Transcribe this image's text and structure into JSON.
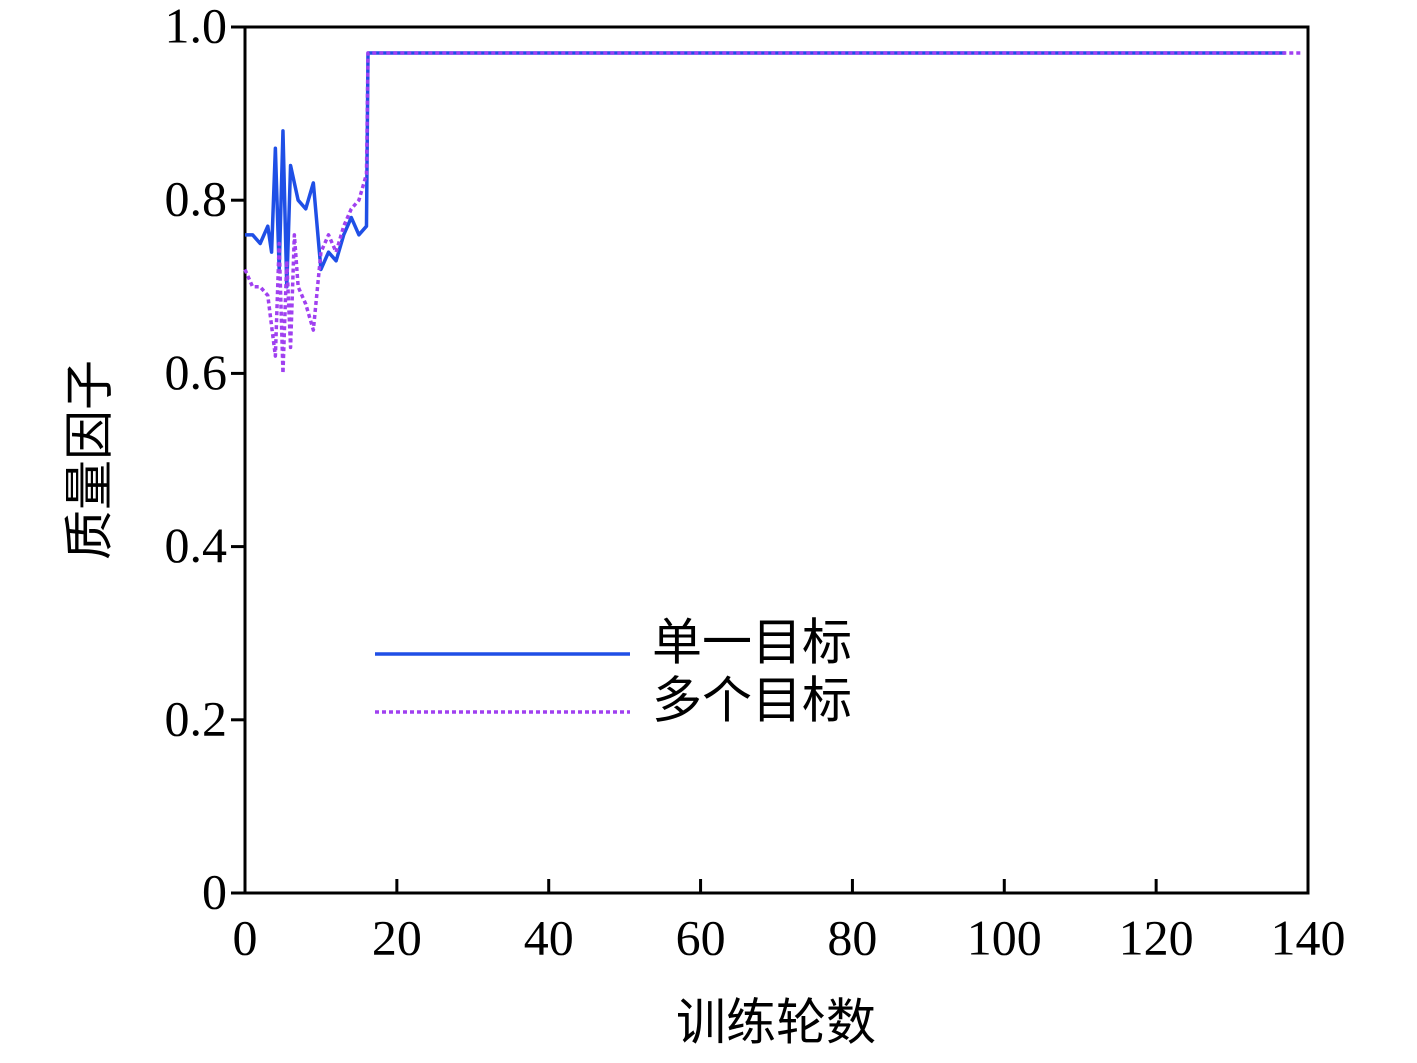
{
  "chart_data": {
    "type": "line",
    "xlabel": "训练轮数",
    "ylabel": "质量因子",
    "xlim": [
      0,
      140
    ],
    "ylim": [
      0,
      1
    ],
    "xticks": [
      0,
      20,
      40,
      60,
      80,
      100,
      120,
      140
    ],
    "yticks": [
      0,
      0.2,
      0.4,
      0.6,
      {
        "value": 1,
        "label": "1.0"
      },
      0.8
    ],
    "legend": "lower-left",
    "series": [
      {
        "name": "单一目标",
        "color": "#1f4fe6",
        "dash": false,
        "x": [
          0,
          1,
          2,
          3,
          3.5,
          4,
          4.5,
          5,
          5.5,
          6,
          7,
          8,
          9,
          10,
          11,
          12,
          13,
          14,
          15,
          16,
          16.2,
          137
        ],
        "values": [
          0.76,
          0.76,
          0.75,
          0.77,
          0.74,
          0.86,
          0.72,
          0.88,
          0.7,
          0.84,
          0.8,
          0.79,
          0.82,
          0.72,
          0.74,
          0.73,
          0.76,
          0.78,
          0.76,
          0.77,
          0.97,
          0.97
        ]
      },
      {
        "name": "多个目标",
        "color": "#a040f0",
        "dash": true,
        "x": [
          0,
          1,
          2,
          3,
          4,
          4.5,
          5,
          5.5,
          6,
          6.5,
          7,
          8,
          9,
          10,
          11,
          12,
          13,
          14,
          15,
          16,
          16.2,
          139
        ],
        "values": [
          0.72,
          0.7,
          0.7,
          0.69,
          0.62,
          0.75,
          0.6,
          0.73,
          0.63,
          0.76,
          0.7,
          0.68,
          0.65,
          0.74,
          0.76,
          0.74,
          0.77,
          0.79,
          0.8,
          0.83,
          0.97,
          0.97
        ]
      }
    ]
  }
}
